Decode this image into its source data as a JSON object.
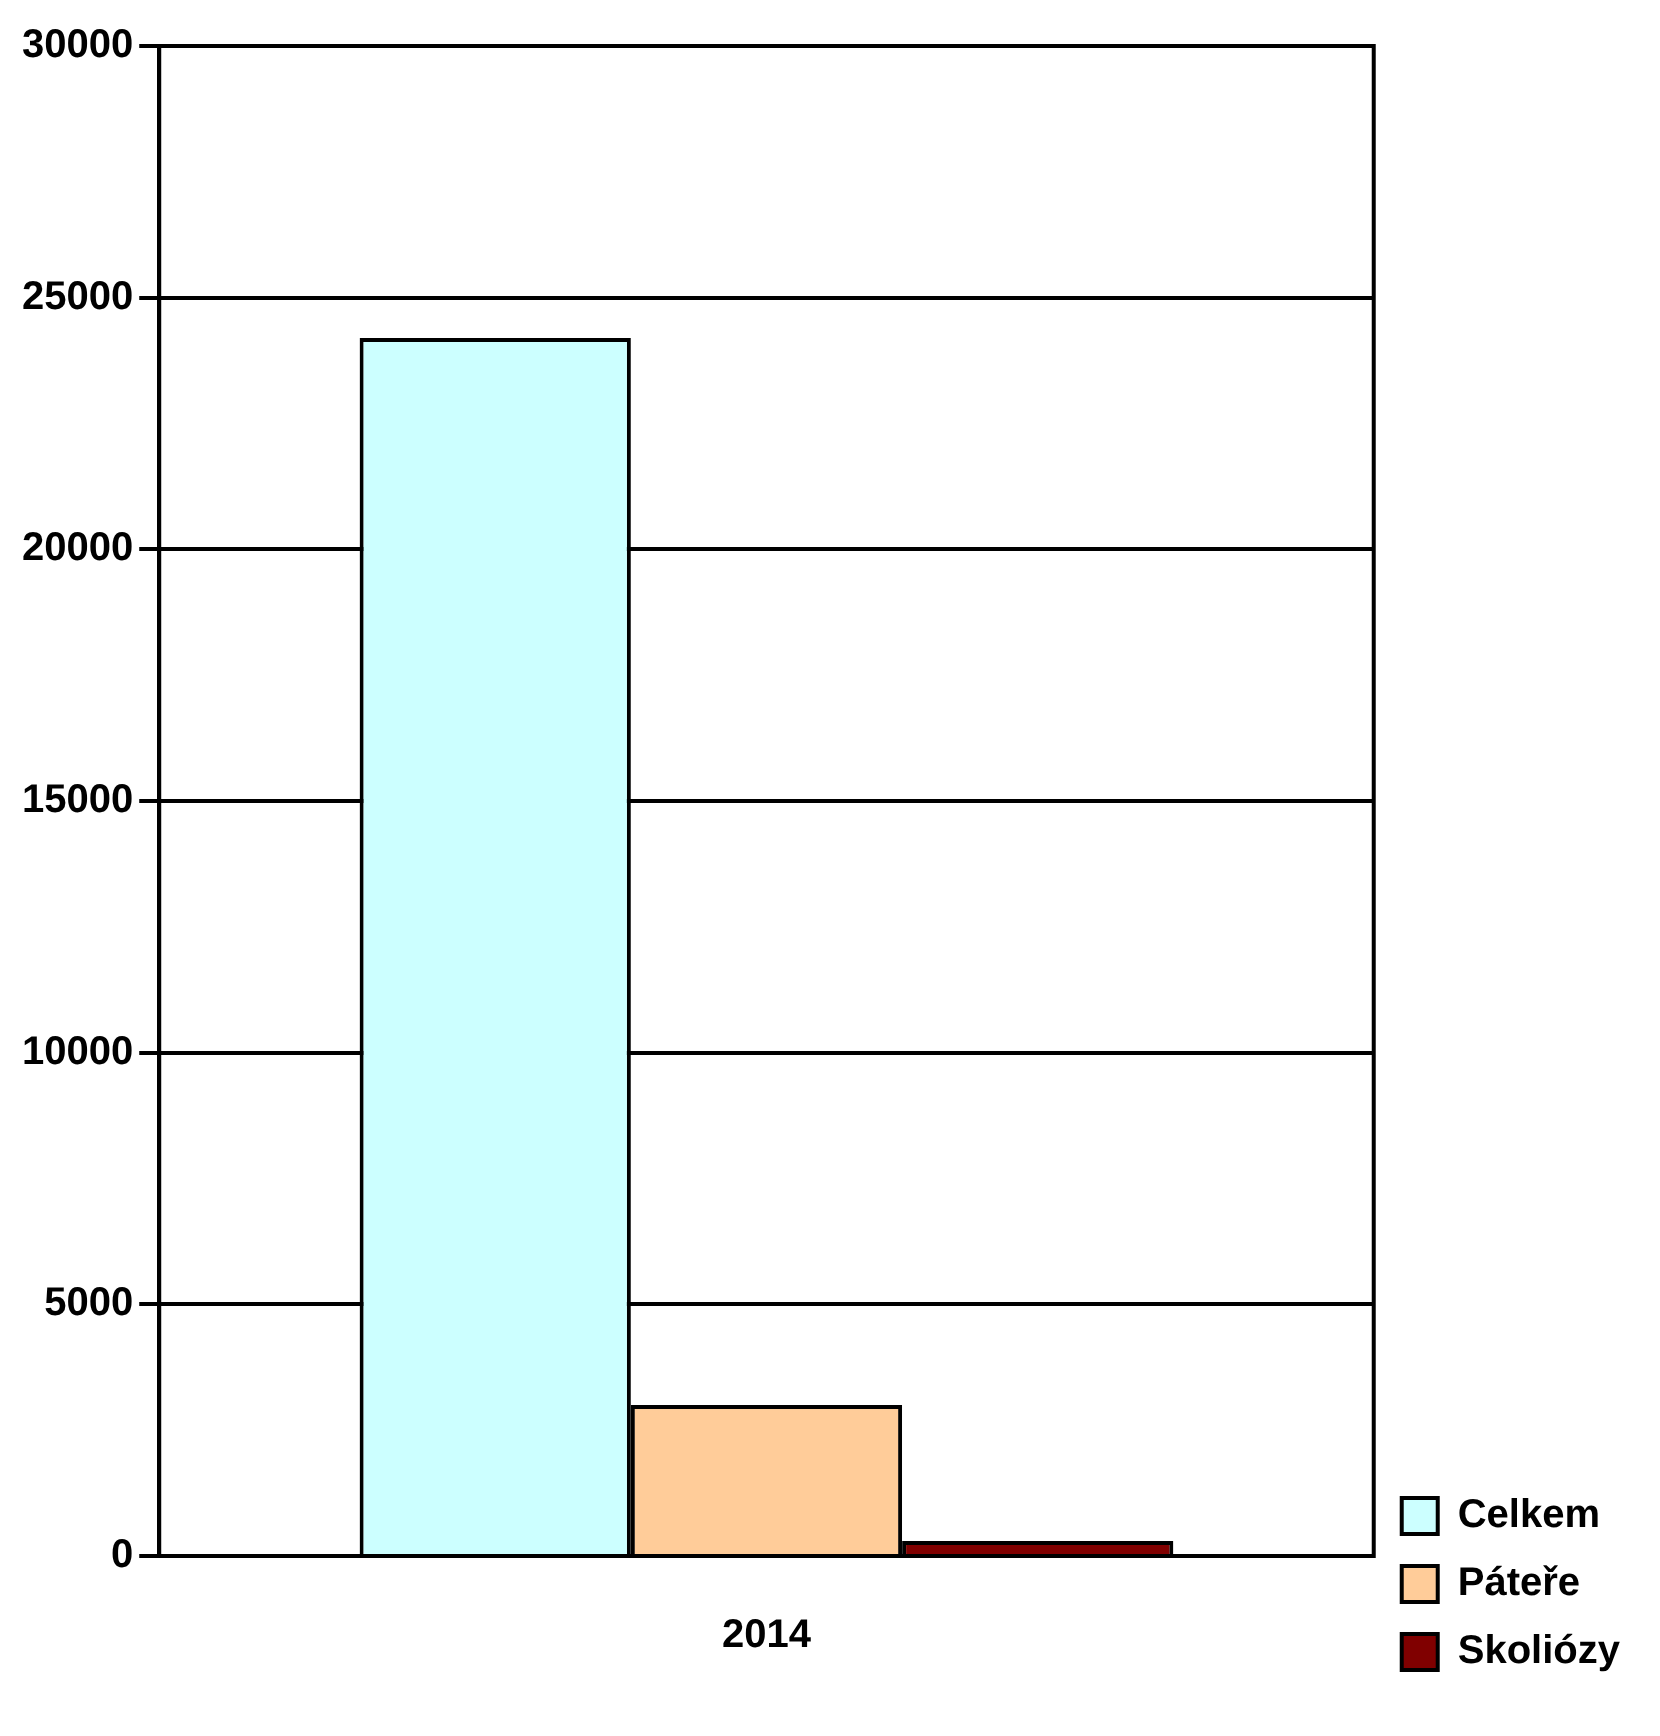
{
  "chart_data": {
    "type": "bar",
    "categories": [
      "2014"
    ],
    "series": [
      {
        "name": "Celkem",
        "color": "#ccffff",
        "values": [
          24200
        ]
      },
      {
        "name": "Páteře",
        "color": "#ffcc99",
        "values": [
          3000
        ]
      },
      {
        "name": "Skoliózy",
        "color": "#800000",
        "values": [
          300
        ]
      }
    ],
    "ylim": [
      0,
      30000
    ],
    "yticks": [
      0,
      5000,
      10000,
      15000,
      20000,
      25000,
      30000
    ],
    "grid": "y",
    "legend": "bottom right"
  }
}
